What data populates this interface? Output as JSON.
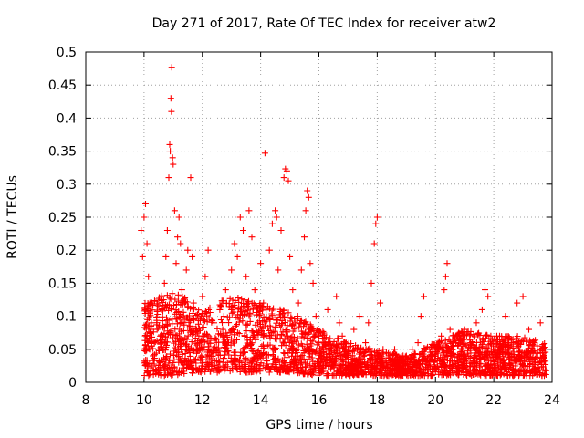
{
  "chart_data": {
    "type": "scatter",
    "title": "Day 271 of 2017, Rate Of TEC Index for receiver atw2",
    "xlabel": "GPS time / hours",
    "ylabel": "ROTI / TECUs",
    "xlim": [
      8,
      24
    ],
    "ylim": [
      0,
      0.5
    ],
    "x_ticks": [
      "8",
      "10",
      "12",
      "14",
      "16",
      "18",
      "20",
      "22",
      "24"
    ],
    "y_ticks": [
      "0",
      "0.05",
      "0.1",
      "0.15",
      "0.2",
      "0.25",
      "0.3",
      "0.35",
      "0.4",
      "0.45",
      "0.5"
    ],
    "grid": true,
    "marker": "+",
    "color": "#ff0000",
    "series": [
      {
        "points": [
          [
            9.9,
            0.23
          ],
          [
            9.95,
            0.19
          ],
          [
            10.0,
            0.25
          ],
          [
            10.05,
            0.27
          ],
          [
            10.1,
            0.21
          ],
          [
            10.15,
            0.16
          ],
          [
            10.2,
            0.12
          ],
          [
            10.25,
            0.09
          ],
          [
            10.0,
            0.05
          ],
          [
            10.05,
            0.03
          ],
          [
            10.1,
            0.07
          ],
          [
            10.3,
            0.04
          ],
          [
            10.35,
            0.06
          ],
          [
            10.4,
            0.02
          ],
          [
            10.45,
            0.08
          ],
          [
            10.5,
            0.05
          ],
          [
            10.55,
            0.03
          ],
          [
            10.6,
            0.11
          ],
          [
            10.65,
            0.07
          ],
          [
            10.7,
            0.15
          ],
          [
            10.75,
            0.19
          ],
          [
            10.8,
            0.23
          ],
          [
            10.85,
            0.31
          ],
          [
            10.88,
            0.36
          ],
          [
            10.9,
            0.35
          ],
          [
            10.92,
            0.43
          ],
          [
            10.94,
            0.41
          ],
          [
            10.95,
            0.477
          ],
          [
            10.98,
            0.34
          ],
          [
            11.0,
            0.33
          ],
          [
            11.05,
            0.26
          ],
          [
            11.1,
            0.18
          ],
          [
            11.15,
            0.22
          ],
          [
            11.2,
            0.25
          ],
          [
            11.25,
            0.21
          ],
          [
            11.3,
            0.14
          ],
          [
            11.35,
            0.09
          ],
          [
            11.4,
            0.12
          ],
          [
            11.45,
            0.17
          ],
          [
            11.5,
            0.2
          ],
          [
            11.6,
            0.31
          ],
          [
            11.65,
            0.19
          ],
          [
            11.7,
            0.12
          ],
          [
            11.8,
            0.08
          ],
          [
            11.9,
            0.06
          ],
          [
            12.0,
            0.13
          ],
          [
            12.05,
            0.07
          ],
          [
            12.1,
            0.16
          ],
          [
            12.2,
            0.2
          ],
          [
            12.25,
            0.04
          ],
          [
            12.3,
            0.03
          ],
          [
            12.4,
            0.09
          ],
          [
            12.5,
            0.05
          ],
          [
            12.6,
            0.11
          ],
          [
            12.7,
            0.08
          ],
          [
            12.8,
            0.14
          ],
          [
            12.9,
            0.06
          ],
          [
            13.0,
            0.17
          ],
          [
            13.1,
            0.21
          ],
          [
            13.2,
            0.19
          ],
          [
            13.3,
            0.25
          ],
          [
            13.4,
            0.23
          ],
          [
            13.5,
            0.16
          ],
          [
            13.6,
            0.26
          ],
          [
            13.7,
            0.22
          ],
          [
            13.8,
            0.14
          ],
          [
            13.9,
            0.09
          ],
          [
            14.0,
            0.18
          ],
          [
            14.1,
            0.12
          ],
          [
            14.15,
            0.347
          ],
          [
            14.2,
            0.07
          ],
          [
            14.3,
            0.2
          ],
          [
            14.4,
            0.24
          ],
          [
            14.5,
            0.26
          ],
          [
            14.55,
            0.25
          ],
          [
            14.6,
            0.17
          ],
          [
            14.7,
            0.23
          ],
          [
            14.8,
            0.31
          ],
          [
            14.85,
            0.323
          ],
          [
            14.9,
            0.32
          ],
          [
            14.95,
            0.305
          ],
          [
            15.0,
            0.19
          ],
          [
            15.1,
            0.14
          ],
          [
            15.2,
            0.09
          ],
          [
            15.3,
            0.12
          ],
          [
            15.4,
            0.17
          ],
          [
            15.5,
            0.22
          ],
          [
            15.55,
            0.26
          ],
          [
            15.6,
            0.29
          ],
          [
            15.65,
            0.28
          ],
          [
            15.7,
            0.18
          ],
          [
            15.8,
            0.15
          ],
          [
            15.9,
            0.1
          ],
          [
            16.0,
            0.07
          ],
          [
            16.1,
            0.04
          ],
          [
            16.2,
            0.06
          ],
          [
            16.3,
            0.11
          ],
          [
            16.4,
            0.05
          ],
          [
            16.6,
            0.13
          ],
          [
            16.7,
            0.09
          ],
          [
            16.8,
            0.07
          ],
          [
            16.9,
            0.04
          ],
          [
            17.0,
            0.05
          ],
          [
            17.2,
            0.08
          ],
          [
            17.4,
            0.1
          ],
          [
            17.6,
            0.06
          ],
          [
            17.7,
            0.09
          ],
          [
            17.8,
            0.15
          ],
          [
            17.9,
            0.21
          ],
          [
            17.95,
            0.24
          ],
          [
            18.0,
            0.25
          ],
          [
            18.1,
            0.12
          ],
          [
            18.2,
            0.05
          ],
          [
            18.4,
            0.04
          ],
          [
            18.6,
            0.05
          ],
          [
            18.8,
            0.03
          ],
          [
            19.0,
            0.04
          ],
          [
            19.2,
            0.05
          ],
          [
            19.4,
            0.06
          ],
          [
            19.5,
            0.1
          ],
          [
            19.6,
            0.13
          ],
          [
            19.8,
            0.05
          ],
          [
            20.0,
            0.04
          ],
          [
            20.2,
            0.07
          ],
          [
            20.3,
            0.14
          ],
          [
            20.35,
            0.16
          ],
          [
            20.4,
            0.18
          ],
          [
            20.5,
            0.08
          ],
          [
            20.7,
            0.06
          ],
          [
            20.9,
            0.07
          ],
          [
            21.0,
            0.08
          ],
          [
            21.2,
            0.06
          ],
          [
            21.4,
            0.09
          ],
          [
            21.6,
            0.11
          ],
          [
            21.7,
            0.14
          ],
          [
            21.8,
            0.13
          ],
          [
            21.9,
            0.07
          ],
          [
            22.0,
            0.05
          ],
          [
            22.2,
            0.07
          ],
          [
            22.4,
            0.1
          ],
          [
            22.6,
            0.06
          ],
          [
            22.8,
            0.12
          ],
          [
            23.0,
            0.13
          ],
          [
            23.2,
            0.08
          ],
          [
            23.4,
            0.06
          ],
          [
            23.6,
            0.09
          ],
          [
            23.7,
            0.04
          ]
        ]
      }
    ],
    "scatter_density_envelope": {
      "x": [
        10,
        11,
        12,
        13,
        14,
        15,
        16,
        17,
        18,
        19,
        20,
        21,
        22,
        23,
        23.8
      ],
      "y_low": [
        0.01,
        0.01,
        0.015,
        0.015,
        0.015,
        0.015,
        0.01,
        0.01,
        0.01,
        0.01,
        0.01,
        0.01,
        0.01,
        0.01,
        0.01
      ],
      "y_high": [
        0.12,
        0.14,
        0.11,
        0.13,
        0.12,
        0.11,
        0.08,
        0.06,
        0.05,
        0.04,
        0.06,
        0.08,
        0.07,
        0.07,
        0.06
      ]
    }
  }
}
